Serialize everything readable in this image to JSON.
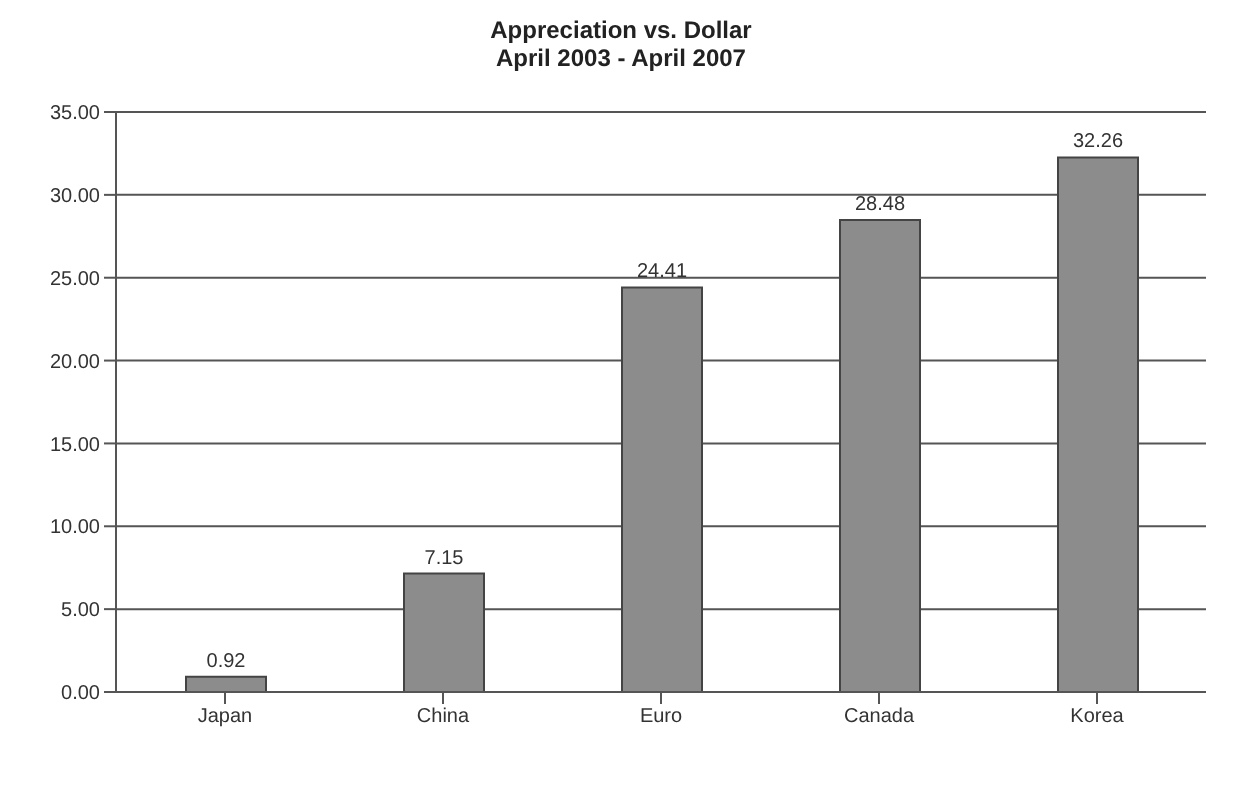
{
  "chart_data": {
    "type": "bar",
    "title": "Appreciation vs. Dollar",
    "subtitle": "April 2003 - April 2007",
    "categories": [
      "Japan",
      "China",
      "Euro",
      "Canada",
      "Korea"
    ],
    "values": [
      0.92,
      7.15,
      24.41,
      28.48,
      32.26
    ],
    "color": "#8c8c8c",
    "data_labels": true,
    "grid": "y",
    "ylim": [
      0,
      35
    ],
    "yticks": [
      {
        "value": 0,
        "label": "0.00"
      },
      {
        "value": 5,
        "label": "5.00"
      },
      {
        "value": 10,
        "label": "10.00"
      },
      {
        "value": 15,
        "label": "15.00"
      },
      {
        "value": 20,
        "label": "20.00"
      },
      {
        "value": 25,
        "label": "25.00"
      },
      {
        "value": 30,
        "label": "30.00"
      },
      {
        "value": 35,
        "label": "35.00"
      }
    ]
  }
}
